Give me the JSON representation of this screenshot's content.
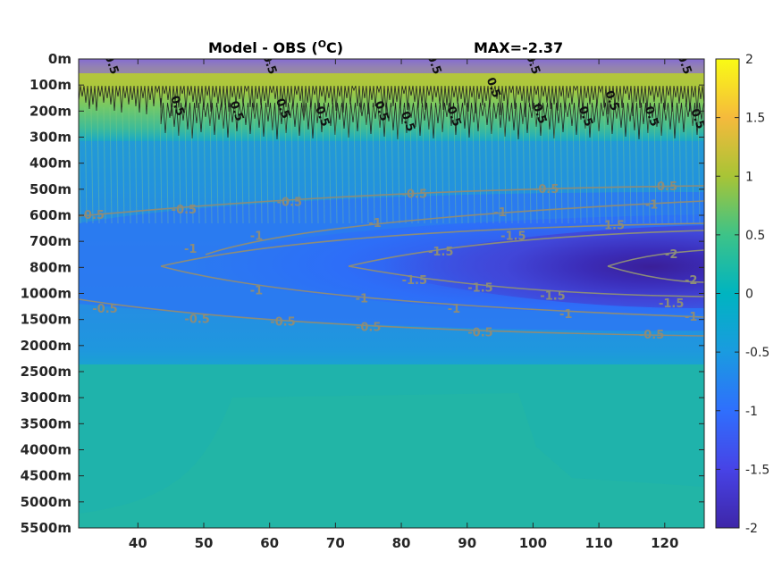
{
  "chart_data": {
    "type": "heatmap",
    "title_main": "Model - OBS (",
    "title_sup": "O",
    "title_end": "C)",
    "title_max": "MAX=-2.37",
    "x_ticks": [
      "40",
      "50",
      "60",
      "70",
      "80",
      "90",
      "100",
      "110",
      "120"
    ],
    "x_tick_values": [
      40,
      50,
      60,
      70,
      80,
      90,
      100,
      110,
      120
    ],
    "xlim": [
      31,
      126
    ],
    "y_ticks": [
      "0m",
      "100m",
      "200m",
      "300m",
      "400m",
      "500m",
      "600m",
      "700m",
      "800m",
      "1000m",
      "1500m",
      "2000m",
      "2500m",
      "3000m",
      "3500m",
      "4000m",
      "4500m",
      "5000m",
      "5500m"
    ],
    "colorbar": {
      "ticks": [
        "2",
        "1.5",
        "1",
        "0.5",
        "0",
        "-0.5",
        "-1",
        "-1.5",
        "-2"
      ],
      "tick_values": [
        2,
        1.5,
        1,
        0.5,
        0,
        -0.5,
        -1,
        -1.5,
        -2
      ],
      "range": [
        -2,
        2
      ],
      "colormap": "parula"
    },
    "contour_labels": [
      {
        "text": "-0.5",
        "x": 33,
        "depth_index": 6.0
      },
      {
        "text": "-0.5",
        "x": 47,
        "depth_index": 5.8
      },
      {
        "text": "-0.5",
        "x": 63,
        "depth_index": 5.5
      },
      {
        "text": "-0.5",
        "x": 82,
        "depth_index": 5.2
      },
      {
        "text": "-0.5",
        "x": 102,
        "depth_index": 5.0
      },
      {
        "text": "-0.5",
        "x": 120,
        "depth_index": 4.9
      },
      {
        "text": "-1",
        "x": 48,
        "depth_index": 7.3
      },
      {
        "text": "-1",
        "x": 58,
        "depth_index": 6.8
      },
      {
        "text": "-1",
        "x": 76,
        "depth_index": 6.3
      },
      {
        "text": "-1",
        "x": 95,
        "depth_index": 5.9
      },
      {
        "text": "-1",
        "x": 118,
        "depth_index": 5.6
      },
      {
        "text": "-1.5",
        "x": 86,
        "depth_index": 7.4
      },
      {
        "text": "-1.5",
        "x": 97,
        "depth_index": 6.8
      },
      {
        "text": "-1.5",
        "x": 112,
        "depth_index": 6.4
      },
      {
        "text": "-2",
        "x": 121,
        "depth_index": 7.5
      },
      {
        "text": "-2",
        "x": 124,
        "depth_index": 8.5
      },
      {
        "text": "-1",
        "x": 58,
        "depth_index": 8.9
      },
      {
        "text": "-1",
        "x": 74,
        "depth_index": 9.2
      },
      {
        "text": "-1",
        "x": 88,
        "depth_index": 9.6
      },
      {
        "text": "-1",
        "x": 105,
        "depth_index": 9.8
      },
      {
        "text": "-1",
        "x": 124,
        "depth_index": 9.9
      },
      {
        "text": "-1.5",
        "x": 82,
        "depth_index": 8.5
      },
      {
        "text": "-1.5",
        "x": 92,
        "depth_index": 8.8
      },
      {
        "text": "-1.5",
        "x": 103,
        "depth_index": 9.1
      },
      {
        "text": "-1.5",
        "x": 121,
        "depth_index": 9.4
      },
      {
        "text": "-0.5",
        "x": 35,
        "depth_index": 9.6
      },
      {
        "text": "-0.5",
        "x": 49,
        "depth_index": 10.0
      },
      {
        "text": "-0.5",
        "x": 62,
        "depth_index": 10.1
      },
      {
        "text": "-0.5",
        "x": 75,
        "depth_index": 10.3
      },
      {
        "text": "-0.5",
        "x": 92,
        "depth_index": 10.5
      },
      {
        "text": "-0.5",
        "x": 118,
        "depth_index": 10.6
      },
      {
        "text": "0.5",
        "x": 36,
        "depth_index": 0.2
      },
      {
        "text": "0.5",
        "x": 60,
        "depth_index": 0.2
      },
      {
        "text": "0.5",
        "x": 85,
        "depth_index": 0.2
      },
      {
        "text": "0.5",
        "x": 100,
        "depth_index": 0.2
      },
      {
        "text": "0.5",
        "x": 123,
        "depth_index": 0.2
      },
      {
        "text": "0.5",
        "x": 46,
        "depth_index": 1.8
      },
      {
        "text": "0.5",
        "x": 55,
        "depth_index": 2.0
      },
      {
        "text": "0.5",
        "x": 62,
        "depth_index": 1.9
      },
      {
        "text": "0.5",
        "x": 68,
        "depth_index": 2.2
      },
      {
        "text": "0.5",
        "x": 77,
        "depth_index": 2.0
      },
      {
        "text": "0.5",
        "x": 81,
        "depth_index": 2.4
      },
      {
        "text": "0.5",
        "x": 88,
        "depth_index": 2.2
      },
      {
        "text": "0.5",
        "x": 94,
        "depth_index": 1.1
      },
      {
        "text": "0.5",
        "x": 101,
        "depth_index": 2.1
      },
      {
        "text": "0.5",
        "x": 108,
        "depth_index": 2.2
      },
      {
        "text": "0.5",
        "x": 112,
        "depth_index": 1.6
      },
      {
        "text": "0.5",
        "x": 118,
        "depth_index": 2.2
      },
      {
        "text": "0.5",
        "x": 125,
        "depth_index": 2.3
      }
    ]
  }
}
